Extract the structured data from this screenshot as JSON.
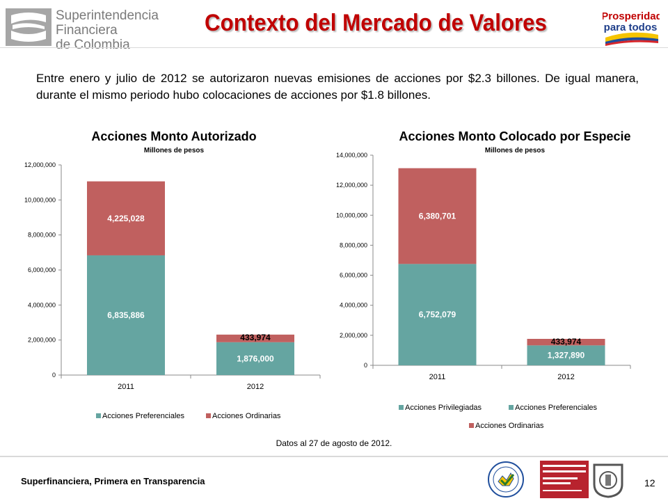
{
  "header": {
    "logo_lines": [
      "Superintendencia",
      "Financiera",
      "de Colombia"
    ],
    "title": "Contexto del Mercado de Valores",
    "right_logo_lines": [
      "Prosperidad",
      "para todos"
    ]
  },
  "intro": "Entre enero y julio de 2012 se autorizaron nuevas emisiones de acciones por $2.3 billones. De igual manera, durante el mismo periodo hubo colocaciones de acciones por $1.8 billones.",
  "colors": {
    "teal": "#65a5a1",
    "red": "#c0605f",
    "title_red": "#c00000"
  },
  "chart_data": [
    {
      "type": "bar",
      "stacked": true,
      "title": "Acciones Monto Autorizado",
      "subtitle": "Millones de pesos",
      "categories": [
        "2011",
        "2012"
      ],
      "series": [
        {
          "name": "Acciones Preferenciales",
          "values": [
            6835886,
            1876000
          ],
          "labels": [
            "6,835,886",
            "1,876,000"
          ],
          "color": "#65a5a1"
        },
        {
          "name": "Acciones Ordinarias",
          "values": [
            4225028,
            433974
          ],
          "labels": [
            "4,225,028",
            "433,974"
          ],
          "color": "#c0605f"
        }
      ],
      "ylim": [
        0,
        12000000
      ],
      "yticks": [
        "0",
        "2,000,000",
        "4,000,000",
        "6,000,000",
        "8,000,000",
        "10,000,000",
        "12,000,000"
      ],
      "legend_position": "bottom"
    },
    {
      "type": "bar",
      "stacked": true,
      "title": "Acciones Monto Colocado por Especie",
      "subtitle": "Millones de pesos",
      "categories": [
        "2011",
        "2012"
      ],
      "series": [
        {
          "name": "Acciones Privilegiadas",
          "values": [
            0,
            0
          ],
          "labels": [
            "",
            ""
          ],
          "color": "#65a5a1"
        },
        {
          "name": "Acciones Preferenciales",
          "values": [
            6752079,
            1327890
          ],
          "labels": [
            "6,752,079",
            "1,327,890"
          ],
          "color": "#65a5a1"
        },
        {
          "name": "Acciones Ordinarias",
          "values": [
            6380701,
            433974
          ],
          "labels": [
            "6,380,701",
            "433,974"
          ],
          "color": "#c0605f"
        }
      ],
      "ylim": [
        0,
        14000000
      ],
      "yticks": [
        "0",
        "2,000,000",
        "4,000,000",
        "6,000,000",
        "8,000,000",
        "10,000,000",
        "12,000,000",
        "14,000,000"
      ],
      "legend_position": "bottom"
    }
  ],
  "footnote": "Datos al 27 de agosto de 2012.",
  "footer": {
    "tagline": "Superfinanciera, Primera en Transparencia",
    "page": "12"
  }
}
